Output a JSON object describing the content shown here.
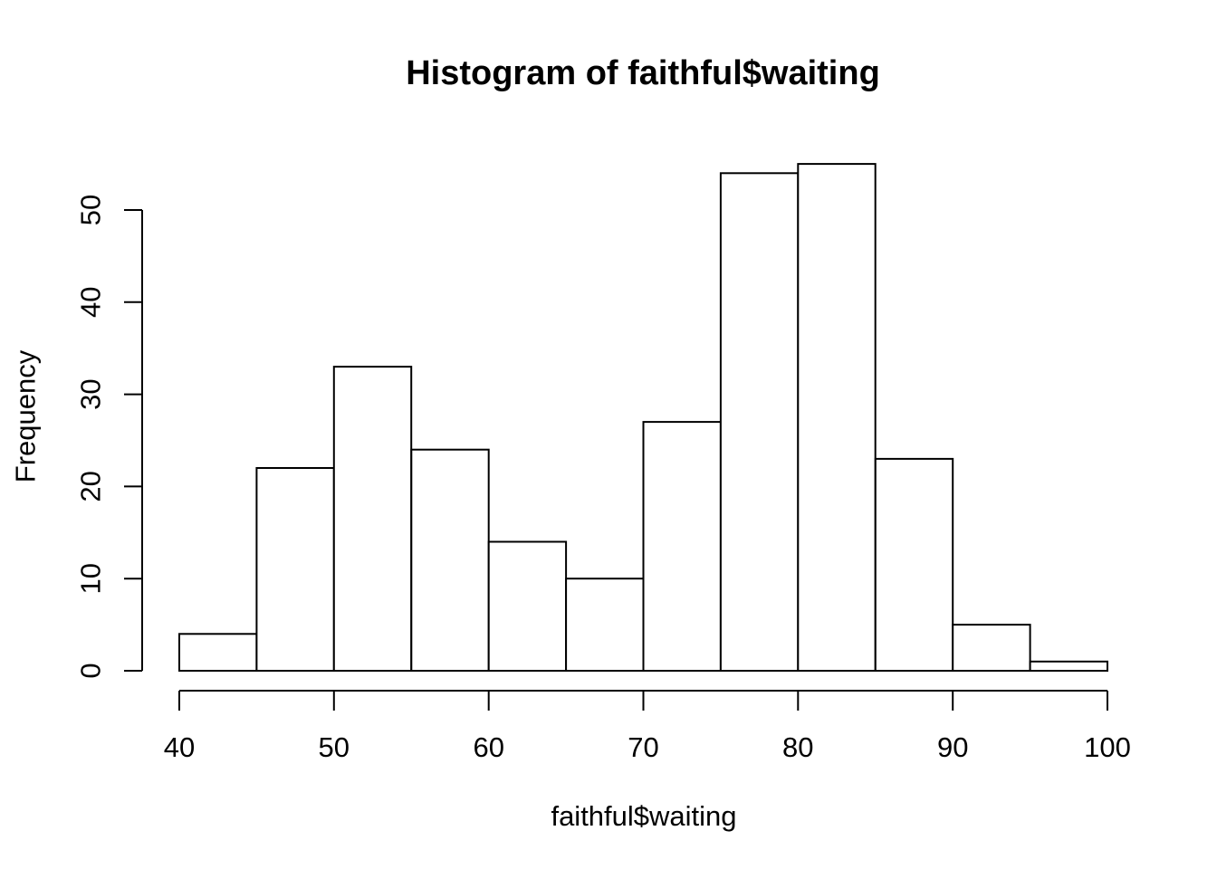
{
  "chart_data": {
    "type": "bar",
    "subtype": "histogram",
    "title": "Histogram of faithful$waiting",
    "xlabel": "faithful$waiting",
    "ylabel": "Frequency",
    "breaks": [
      40,
      45,
      50,
      55,
      60,
      65,
      70,
      75,
      80,
      85,
      90,
      95,
      100
    ],
    "counts": [
      4,
      22,
      33,
      24,
      14,
      10,
      27,
      54,
      55,
      23,
      5,
      1
    ],
    "categories": [
      "40-45",
      "45-50",
      "50-55",
      "55-60",
      "60-65",
      "65-70",
      "70-75",
      "75-80",
      "80-85",
      "85-90",
      "90-95",
      "95-100"
    ],
    "values": [
      4,
      22,
      33,
      24,
      14,
      10,
      27,
      54,
      55,
      23,
      5,
      1
    ],
    "x_ticks": [
      40,
      50,
      60,
      70,
      80,
      90,
      100
    ],
    "y_ticks": [
      0,
      10,
      20,
      30,
      40,
      50
    ],
    "xlim": [
      40,
      100
    ],
    "ylim": [
      0,
      55
    ],
    "grid": false,
    "legend": null,
    "bar_fill": "#ffffff",
    "line_color": "#000000",
    "background_color": "#ffffff"
  }
}
